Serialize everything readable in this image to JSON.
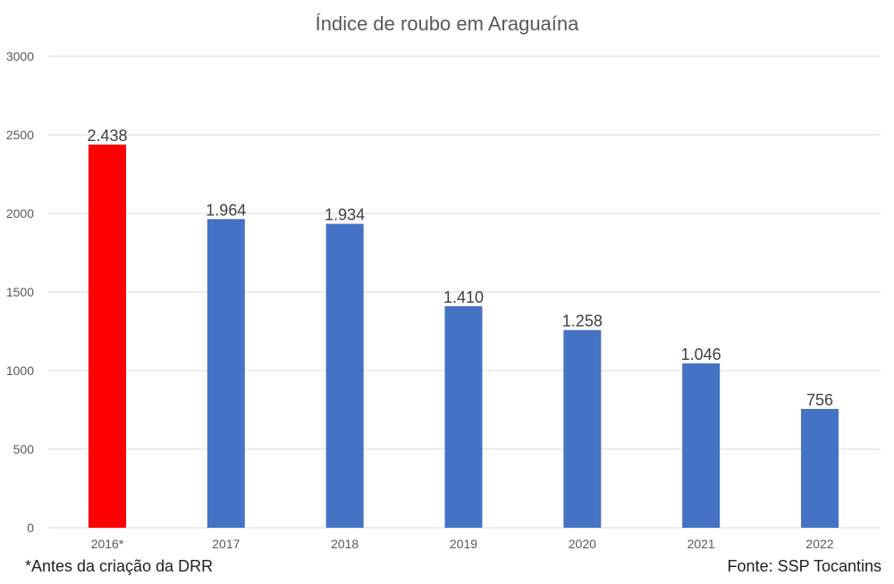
{
  "footnote": "*Antes da criação da DRR",
  "source": "Fonte: SSP Tocantins",
  "colors": {
    "highlight": "#ff0000",
    "bar": "#4472c4",
    "grid": "#d9d9d9",
    "axis_text": "#595959",
    "title_text": "#595959",
    "label_text": "#404040"
  },
  "chart_data": {
    "type": "bar",
    "title": "Índice de roubo em Araguaína",
    "categories": [
      "2016*",
      "2017",
      "2018",
      "2019",
      "2020",
      "2021",
      "2022"
    ],
    "values": [
      2438,
      1964,
      1934,
      1410,
      1258,
      1046,
      756
    ],
    "data_labels": [
      "2.438",
      "1.964",
      "1.934",
      "1.410",
      "1.258",
      "1.046",
      "756"
    ],
    "highlight_index": 0,
    "y_ticks": [
      0,
      500,
      1000,
      1500,
      2000,
      2500,
      3000
    ],
    "ylim": [
      0,
      3000
    ],
    "xlabel": "",
    "ylabel": "",
    "grid": true,
    "legend": false
  }
}
